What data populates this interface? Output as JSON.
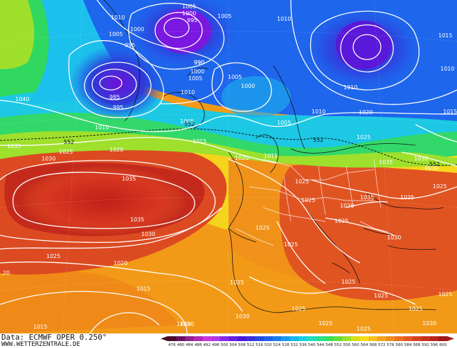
{
  "credit": {
    "line1": "Data: ECMWF OPER 0.250°",
    "line2": "WWW.WETTERZENTRALE.DE"
  },
  "colors": {
    "cold": "#5a10d8",
    "blue": "#1a5cf0",
    "cyan": "#19c8e8",
    "green": "#2ee05a",
    "yellow": "#f4e020",
    "orange": "#f09018",
    "red": "#d83020",
    "darkred": "#b01818"
  },
  "isobar_labels": [
    {
      "text": "1010"
    },
    {
      "text": "1005"
    },
    {
      "text": "1000"
    },
    {
      "text": "995"
    },
    {
      "text": "1005"
    },
    {
      "text": "1005"
    },
    {
      "text": "1010"
    },
    {
      "text": "1000"
    },
    {
      "text": "995"
    },
    {
      "text": "990"
    },
    {
      "text": "1015"
    },
    {
      "text": "1010"
    },
    {
      "text": "985"
    },
    {
      "text": "995"
    },
    {
      "text": "990"
    },
    {
      "text": "1000"
    },
    {
      "text": "1005"
    },
    {
      "text": "1010"
    },
    {
      "text": "1005"
    },
    {
      "text": "1000"
    },
    {
      "text": "1005"
    },
    {
      "text": "1010"
    },
    {
      "text": "1010"
    },
    {
      "text": "1020"
    },
    {
      "text": "1015"
    },
    {
      "text": "1040"
    },
    {
      "text": "1010"
    },
    {
      "text": "1005"
    },
    {
      "text": "1025"
    },
    {
      "text": "1030"
    },
    {
      "text": "1035"
    },
    {
      "text": "1025"
    },
    {
      "text": "1020"
    },
    {
      "text": "1015"
    },
    {
      "text": "1020"
    },
    {
      "text": "1015"
    },
    {
      "text": "1035"
    },
    {
      "text": "1030"
    },
    {
      "text": "1025"
    },
    {
      "text": "1030"
    },
    {
      "text": "1035"
    },
    {
      "text": "1025"
    },
    {
      "text": "1025"
    },
    {
      "text": "1035"
    },
    {
      "text": "1030"
    },
    {
      "text": "1035"
    },
    {
      "text": "1035"
    },
    {
      "text": "1025"
    },
    {
      "text": "1025"
    },
    {
      "text": "1030"
    },
    {
      "text": "1025"
    },
    {
      "text": "1030"
    },
    {
      "text": "1025"
    },
    {
      "text": "1025"
    },
    {
      "text": "1025"
    },
    {
      "text": "1020"
    },
    {
      "text": "1025"
    },
    {
      "text": "1025"
    },
    {
      "text": "1015"
    },
    {
      "text": "1020"
    },
    {
      "text": "1020"
    },
    {
      "text": "1015"
    },
    {
      "text": "1025"
    },
    {
      "text": "1025"
    },
    {
      "text": "1025"
    },
    {
      "text": "20"
    },
    {
      "text": "1030"
    },
    {
      "text": "1025"
    },
    {
      "text": "1030"
    }
  ],
  "contour_labels": [
    {
      "text": "552"
    },
    {
      "text": "552"
    },
    {
      "text": "552"
    },
    {
      "text": "552"
    }
  ],
  "colorbar": {
    "values": [
      "476",
      "480",
      "484",
      "488",
      "492",
      "496",
      "500",
      "504",
      "508",
      "512",
      "516",
      "520",
      "524",
      "528",
      "532",
      "536",
      "540",
      "544",
      "548",
      "552",
      "556",
      "560",
      "564",
      "568",
      "572",
      "576",
      "580",
      "584",
      "588",
      "592",
      "596",
      "600"
    ],
    "colors": [
      "#4a0a2a",
      "#6a1060",
      "#90208c",
      "#b028b8",
      "#c838d8",
      "#b038e8",
      "#8828e8",
      "#6420e0",
      "#4818d8",
      "#3830d8",
      "#2848e0",
      "#1e60ea",
      "#1a7cf0",
      "#1a9af0",
      "#18b8ec",
      "#18d0e0",
      "#20dcc0",
      "#28e08c",
      "#34e05c",
      "#60e038",
      "#9ce028",
      "#d4e01c",
      "#f6dc18",
      "#f6c01c",
      "#f4a21e",
      "#f08a1c",
      "#ec701c",
      "#e45820",
      "#d84020",
      "#c83020",
      "#b82418",
      "#a01818"
    ]
  }
}
